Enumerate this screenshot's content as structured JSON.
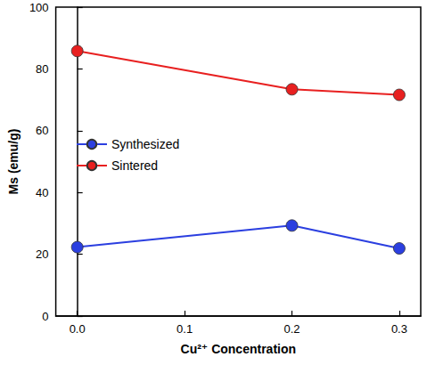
{
  "chart_data": {
    "type": "line",
    "x_label": "Cu²⁺ Concentration",
    "y_label": "Ms (emu/g)",
    "x": [
      0.0,
      0.2,
      0.3
    ],
    "series": [
      {
        "name": "Synthesized",
        "color": "#2b3fe0",
        "values": [
          22.3,
          29.3,
          21.9
        ]
      },
      {
        "name": "Sintered",
        "color": "#e82020",
        "values": [
          85.8,
          73.4,
          71.6
        ]
      }
    ],
    "xlim": [
      -0.02,
      0.32
    ],
    "xticks": [
      {
        "value": 0,
        "label": "0.0"
      },
      {
        "value": 0.1,
        "label": "0.1"
      },
      {
        "value": 0.2,
        "label": "0.2"
      },
      {
        "value": 0.3,
        "label": "0.3"
      }
    ],
    "ylim": [
      0,
      100
    ],
    "yticks": [
      0,
      20,
      40,
      60,
      80,
      100
    ],
    "grid": false,
    "legend": "left",
    "marker": "circle",
    "line_style": "solid"
  }
}
